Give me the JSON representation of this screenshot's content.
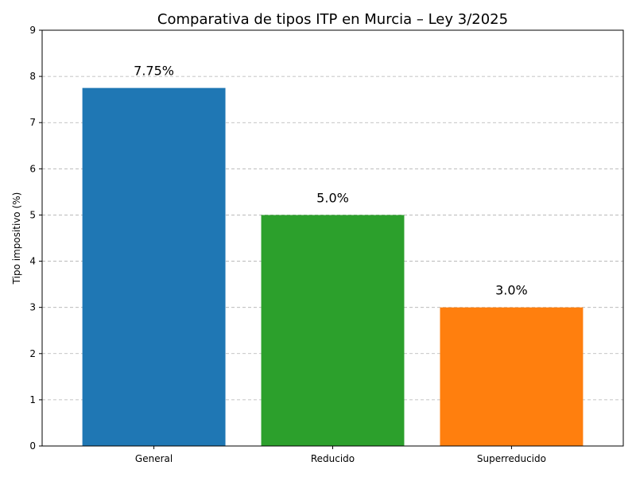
{
  "chart_data": {
    "type": "bar",
    "title": "Comparativa de tipos ITP en Murcia – Ley 3/2025",
    "xlabel": "",
    "ylabel": "Tipo impositivo (%)",
    "categories": [
      "General",
      "Reducido",
      "Superreducido"
    ],
    "values": [
      7.75,
      5.0,
      3.0
    ],
    "data_labels": [
      "7.75%",
      "5.0%",
      "3.0%"
    ],
    "colors": [
      "#1f77b4",
      "#2ca02c",
      "#ff7f0e"
    ],
    "ylim": [
      0,
      9
    ],
    "yticks": [
      0,
      1,
      2,
      3,
      4,
      5,
      6,
      7,
      8,
      9
    ],
    "grid": true
  }
}
